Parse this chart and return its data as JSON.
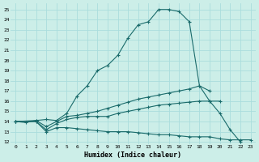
{
  "xlabel": "Humidex (Indice chaleur)",
  "bg_color": "#cceee8",
  "grid_color": "#aadddd",
  "line_color": "#1a6b6b",
  "xlim": [
    -0.5,
    23.5
  ],
  "ylim": [
    11.8,
    25.6
  ],
  "yticks": [
    12,
    13,
    14,
    15,
    16,
    17,
    18,
    19,
    20,
    21,
    22,
    23,
    24,
    25
  ],
  "xticks": [
    0,
    1,
    2,
    3,
    4,
    5,
    6,
    7,
    8,
    9,
    10,
    11,
    12,
    13,
    14,
    15,
    16,
    17,
    18,
    19,
    20,
    21,
    22,
    23
  ],
  "lines": [
    {
      "x": [
        0,
        1,
        2,
        3,
        4,
        5,
        6,
        7,
        8,
        9,
        10,
        11,
        12,
        13,
        14,
        15,
        16,
        17,
        18,
        19,
        20,
        21,
        22
      ],
      "y": [
        14.0,
        13.9,
        14.1,
        14.2,
        14.1,
        14.8,
        16.5,
        17.5,
        19.0,
        19.5,
        20.5,
        22.2,
        23.5,
        23.8,
        25.0,
        25.0,
        24.8,
        23.8,
        17.5,
        16.0,
        14.8,
        13.2,
        12.0
      ]
    },
    {
      "x": [
        0,
        2,
        3,
        4,
        5,
        6,
        7,
        8,
        9,
        10,
        11,
        12,
        13,
        14,
        15,
        16,
        17,
        18,
        19
      ],
      "y": [
        14.0,
        14.1,
        13.5,
        14.0,
        14.5,
        14.6,
        14.8,
        15.0,
        15.3,
        15.6,
        15.9,
        16.2,
        16.4,
        16.6,
        16.8,
        17.0,
        17.2,
        17.5,
        17.0
      ]
    },
    {
      "x": [
        0,
        2,
        3,
        4,
        5,
        6,
        7,
        8,
        9,
        10,
        11,
        12,
        13,
        14,
        15,
        16,
        17,
        18,
        19,
        20
      ],
      "y": [
        14.0,
        14.0,
        13.2,
        13.8,
        14.2,
        14.4,
        14.5,
        14.5,
        14.5,
        14.8,
        15.0,
        15.2,
        15.4,
        15.6,
        15.7,
        15.8,
        15.9,
        16.0,
        16.0,
        16.0
      ]
    },
    {
      "x": [
        0,
        2,
        3,
        4,
        5,
        6,
        7,
        8,
        9,
        10,
        11,
        12,
        13,
        14,
        15,
        16,
        17,
        18,
        19,
        20,
        21,
        22,
        23
      ],
      "y": [
        14.0,
        14.0,
        13.0,
        13.4,
        13.4,
        13.3,
        13.2,
        13.1,
        13.0,
        13.0,
        13.0,
        12.9,
        12.8,
        12.7,
        12.7,
        12.6,
        12.5,
        12.5,
        12.5,
        12.3,
        12.2,
        12.2,
        12.2
      ]
    }
  ]
}
